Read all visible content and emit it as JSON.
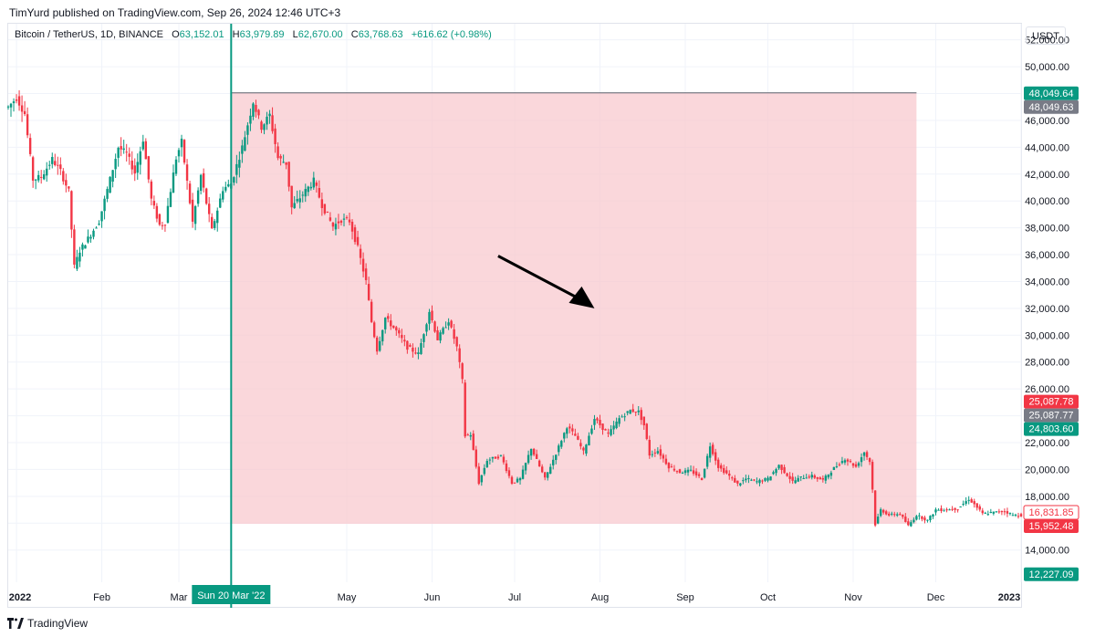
{
  "header": {
    "published_text": "TimYurd published on TradingView.com, Sep 26, 2024 12:46 UTC+3"
  },
  "legend": {
    "symbol": "Bitcoin / TetherUS, 1D, BINANCE",
    "o_label": "O",
    "o_value": "63,152.01",
    "h_label": "H",
    "h_value": "63,979.89",
    "l_label": "L",
    "l_value": "62,670.00",
    "c_label": "C",
    "c_value": "63,768.63",
    "change": "+616.62 (+0.98%)"
  },
  "currency_button": "USDT",
  "footer": {
    "brand": "TradingView"
  },
  "colors": {
    "up": "#089981",
    "down": "#f23645",
    "zone_fill": "#f8c9cf",
    "cursor_line": "#089981",
    "price_tag_gray": "#787b86"
  },
  "chart_data": {
    "type": "candlestick",
    "x_axis_labels": [
      {
        "date": "2022-01-01",
        "label": "2022",
        "bold": true
      },
      {
        "date": "2022-02-01",
        "label": "Feb"
      },
      {
        "date": "2022-03-01",
        "label": "Mar"
      },
      {
        "date": "2022-05-01",
        "label": "May"
      },
      {
        "date": "2022-06-01",
        "label": "Jun"
      },
      {
        "date": "2022-07-01",
        "label": "Jul"
      },
      {
        "date": "2022-08-01",
        "label": "Aug"
      },
      {
        "date": "2022-09-01",
        "label": "Sep"
      },
      {
        "date": "2022-10-01",
        "label": "Oct"
      },
      {
        "date": "2022-11-01",
        "label": "Nov"
      },
      {
        "date": "2022-12-01",
        "label": "Dec"
      },
      {
        "date": "2023-01-01",
        "label": "2023",
        "bold": true
      }
    ],
    "x_range": [
      "2021-12-29",
      "2023-01-01"
    ],
    "y_ticks": [
      14000,
      16000,
      18000,
      20000,
      22000,
      24000,
      26000,
      28000,
      30000,
      32000,
      34000,
      36000,
      38000,
      40000,
      42000,
      44000,
      46000,
      48000,
      50000,
      52000
    ],
    "y_tick_labels": [
      "14,000.00",
      "16,000.00",
      "18,000.00",
      "20,000.00",
      "22,000.00",
      "24,000.00",
      "26,000.00",
      "28,000.00",
      "30,000.00",
      "32,000.00",
      "34,000.00",
      "36,000.00",
      "38,000.00",
      "40,000.00",
      "42,000.00",
      "44,000.00",
      "46,000.00",
      "48,000.00",
      "50,000.00",
      "52,000.00"
    ],
    "y_range": [
      11600,
      53200
    ],
    "crosshair": {
      "date": "2022-03-20",
      "label": "Sun 20 Mar '22"
    },
    "short_position_zone": {
      "start": "2022-03-20",
      "end": "2022-11-24",
      "top": 48049.63,
      "bottom": 15952.48
    },
    "arrow": {
      "from": [
        "2022-06-25",
        35900
      ],
      "to": [
        "2022-07-30",
        32000
      ]
    },
    "price_tags": [
      {
        "value": 48049.64,
        "label": "48,049.64",
        "color": "#089981"
      },
      {
        "value": 48049.63,
        "label": "48,049.63",
        "color": "#787b86",
        "offset": 1
      },
      {
        "value": 25087.78,
        "label": "25,087.78",
        "color": "#f23645"
      },
      {
        "value": 25087.77,
        "label": "25,087.77",
        "color": "#787b86",
        "offset": 1
      },
      {
        "value": 24803.6,
        "label": "24,803.60",
        "color": "#089981",
        "offset": 1
      },
      {
        "value": 16831.85,
        "label": "16,831.85",
        "color": "#ffffff",
        "text": "#f23645",
        "border": "#f23645"
      },
      {
        "value": 15952.48,
        "label": "15,952.48",
        "color": "#f23645",
        "offset": 1
      },
      {
        "value": 12227.09,
        "label": "12,227.09",
        "color": "#089981"
      }
    ],
    "close_series": [
      [
        "2021-12-29",
        47000
      ],
      [
        "2022-01-01",
        47700
      ],
      [
        "2022-01-04",
        46500
      ],
      [
        "2022-01-07",
        41600
      ],
      [
        "2022-01-10",
        41800
      ],
      [
        "2022-01-14",
        43100
      ],
      [
        "2022-01-17",
        42200
      ],
      [
        "2022-01-20",
        40700
      ],
      [
        "2022-01-22",
        35100
      ],
      [
        "2022-01-24",
        36300
      ],
      [
        "2022-01-27",
        37200
      ],
      [
        "2022-01-31",
        38500
      ],
      [
        "2022-02-04",
        41600
      ],
      [
        "2022-02-07",
        44000
      ],
      [
        "2022-02-10",
        43500
      ],
      [
        "2022-02-13",
        42100
      ],
      [
        "2022-02-16",
        44600
      ],
      [
        "2022-02-19",
        40100
      ],
      [
        "2022-02-22",
        38200
      ],
      [
        "2022-02-24",
        38400
      ],
      [
        "2022-02-28",
        43200
      ],
      [
        "2022-03-02",
        44400
      ],
      [
        "2022-03-06",
        38400
      ],
      [
        "2022-03-09",
        41900
      ],
      [
        "2022-03-13",
        37800
      ],
      [
        "2022-03-17",
        40900
      ],
      [
        "2022-03-20",
        41300
      ],
      [
        "2022-03-24",
        44000
      ],
      [
        "2022-03-28",
        47400
      ],
      [
        "2022-03-31",
        45500
      ],
      [
        "2022-04-03",
        46400
      ],
      [
        "2022-04-06",
        43200
      ],
      [
        "2022-04-09",
        42800
      ],
      [
        "2022-04-11",
        39500
      ],
      [
        "2022-04-15",
        40500
      ],
      [
        "2022-04-19",
        41500
      ],
      [
        "2022-04-22",
        39700
      ],
      [
        "2022-04-26",
        38100
      ],
      [
        "2022-04-29",
        38600
      ],
      [
        "2022-05-02",
        38500
      ],
      [
        "2022-05-05",
        36500
      ],
      [
        "2022-05-08",
        34000
      ],
      [
        "2022-05-10",
        31000
      ],
      [
        "2022-05-12",
        28900
      ],
      [
        "2022-05-15",
        31300
      ],
      [
        "2022-05-19",
        30300
      ],
      [
        "2022-05-23",
        29100
      ],
      [
        "2022-05-27",
        28600
      ],
      [
        "2022-05-31",
        31800
      ],
      [
        "2022-06-03",
        29700
      ],
      [
        "2022-06-07",
        31100
      ],
      [
        "2022-06-10",
        29100
      ],
      [
        "2022-06-12",
        26600
      ],
      [
        "2022-06-13",
        22500
      ],
      [
        "2022-06-15",
        22600
      ],
      [
        "2022-06-18",
        19000
      ],
      [
        "2022-06-21",
        20700
      ],
      [
        "2022-06-26",
        21000
      ],
      [
        "2022-06-30",
        19000
      ],
      [
        "2022-07-03",
        19300
      ],
      [
        "2022-07-07",
        21600
      ],
      [
        "2022-07-12",
        19300
      ],
      [
        "2022-07-16",
        21200
      ],
      [
        "2022-07-20",
        23200
      ],
      [
        "2022-07-23",
        22500
      ],
      [
        "2022-07-26",
        21300
      ],
      [
        "2022-07-30",
        23800
      ],
      [
        "2022-08-04",
        22600
      ],
      [
        "2022-08-08",
        23800
      ],
      [
        "2022-08-12",
        24400
      ],
      [
        "2022-08-15",
        24300
      ],
      [
        "2022-08-17",
        23300
      ],
      [
        "2022-08-19",
        21100
      ],
      [
        "2022-08-22",
        21400
      ],
      [
        "2022-08-26",
        20200
      ],
      [
        "2022-08-30",
        19800
      ],
      [
        "2022-09-03",
        19900
      ],
      [
        "2022-09-07",
        19300
      ],
      [
        "2022-09-10",
        21800
      ],
      [
        "2022-09-13",
        20200
      ],
      [
        "2022-09-16",
        19700
      ],
      [
        "2022-09-20",
        18900
      ],
      [
        "2022-09-23",
        19300
      ],
      [
        "2022-09-27",
        19100
      ],
      [
        "2022-10-01",
        19300
      ],
      [
        "2022-10-05",
        20300
      ],
      [
        "2022-10-10",
        19100
      ],
      [
        "2022-10-13",
        19400
      ],
      [
        "2022-10-17",
        19500
      ],
      [
        "2022-10-21",
        19200
      ],
      [
        "2022-10-25",
        20100
      ],
      [
        "2022-10-29",
        20800
      ],
      [
        "2022-11-02",
        20200
      ],
      [
        "2022-11-05",
        21300
      ],
      [
        "2022-11-07",
        20600
      ],
      [
        "2022-11-08",
        18500
      ],
      [
        "2022-11-09",
        15900
      ],
      [
        "2022-11-11",
        17000
      ],
      [
        "2022-11-14",
        16600
      ],
      [
        "2022-11-18",
        16700
      ],
      [
        "2022-11-21",
        15800
      ],
      [
        "2022-11-24",
        16600
      ],
      [
        "2022-11-28",
        16200
      ],
      [
        "2022-12-01",
        17000
      ],
      [
        "2022-12-05",
        17000
      ],
      [
        "2022-12-09",
        17100
      ],
      [
        "2022-12-13",
        17800
      ],
      [
        "2022-12-15",
        17400
      ],
      [
        "2022-12-18",
        16700
      ],
      [
        "2022-12-22",
        16800
      ],
      [
        "2022-12-26",
        16900
      ],
      [
        "2022-12-29",
        16600
      ],
      [
        "2023-01-01",
        16600
      ]
    ]
  }
}
